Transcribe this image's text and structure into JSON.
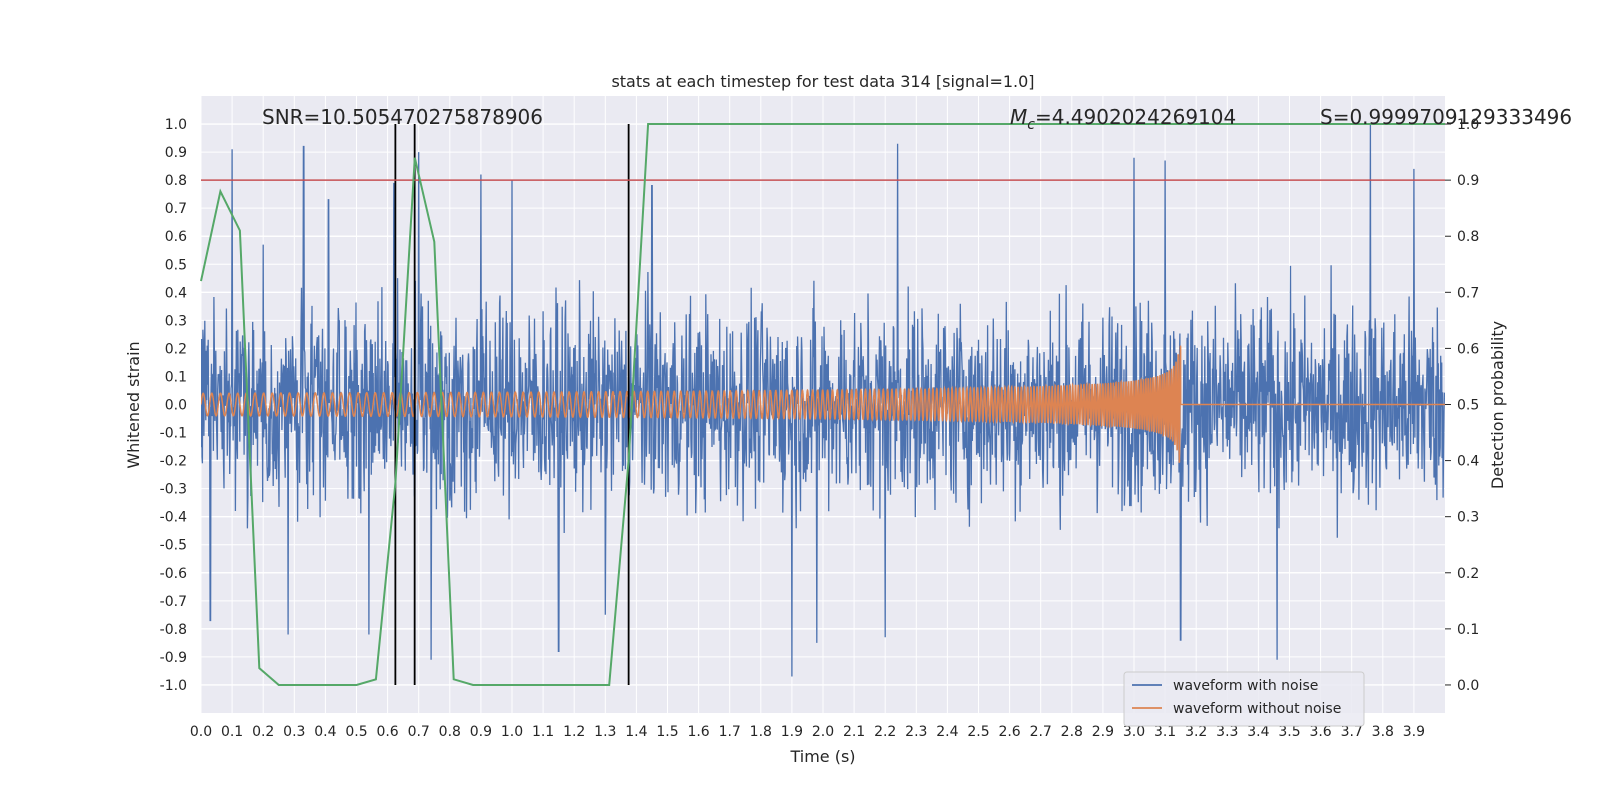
{
  "chart_data": {
    "type": "line",
    "title": "stats at each timestep for test data 314 [signal=1.0]",
    "xlabel": "Time (s)",
    "ylabel": "Whitened strain",
    "y2label": "Detection probability",
    "xlim": [
      0.0,
      4.0
    ],
    "ylim": [
      -1.1,
      1.1
    ],
    "y2lim": [
      -0.05,
      1.05
    ],
    "x_ticks": [
      "0.0",
      "0.1",
      "0.2",
      "0.3",
      "0.4",
      "0.5",
      "0.6",
      "0.7",
      "0.8",
      "0.9",
      "1.0",
      "1.1",
      "1.2",
      "1.3",
      "1.4",
      "1.5",
      "1.6",
      "1.7",
      "1.8",
      "1.9",
      "2.0",
      "2.1",
      "2.2",
      "2.3",
      "2.4",
      "2.5",
      "2.6",
      "2.7",
      "2.8",
      "2.9",
      "3.0",
      "3.1",
      "3.2",
      "3.3",
      "3.4",
      "3.5",
      "3.6",
      "3.7",
      "3.8",
      "3.9"
    ],
    "y_ticks": [
      "1.0",
      "0.9",
      "0.8",
      "0.7",
      "0.6",
      "0.5",
      "0.4",
      "0.3",
      "0.2",
      "0.1",
      "0.0",
      "-0.1",
      "-0.2",
      "-0.3",
      "-0.4",
      "-0.5",
      "-0.6",
      "-0.7",
      "-0.8",
      "-0.9",
      "-1.0"
    ],
    "y2_ticks": [
      "1.0",
      "0.9",
      "0.8",
      "0.7",
      "0.6",
      "0.5",
      "0.4",
      "0.3",
      "0.2",
      "0.1",
      "0.0"
    ],
    "grid": true,
    "legend_position": "bottom-right",
    "annotations": {
      "snr": "SNR=10.505470275878906",
      "mc_symbol": "M",
      "mc_sub": "c",
      "mc_value": "=4.4902024269104",
      "s": "S=0.9999709129333496"
    },
    "threshold_probability": 0.9,
    "vertical_markers_s": [
      0.625,
      0.687,
      1.375
    ],
    "series": [
      {
        "name": "waveform with noise",
        "color": "#4c72b0",
        "kind": "noise",
        "x_range": [
          0.0,
          4.0
        ],
        "typical_amplitude": 0.4,
        "spikes": [
          {
            "x": 0.02,
            "y": 0.21
          },
          {
            "x": 0.03,
            "y": -0.77
          },
          {
            "x": 0.1,
            "y": 0.91
          },
          {
            "x": 0.2,
            "y": 0.57
          },
          {
            "x": 0.28,
            "y": -0.82
          },
          {
            "x": 0.33,
            "y": 0.92
          },
          {
            "x": 0.41,
            "y": 0.73
          },
          {
            "x": 0.54,
            "y": -0.82
          },
          {
            "x": 0.62,
            "y": 0.79
          },
          {
            "x": 0.7,
            "y": 0.9
          },
          {
            "x": 0.74,
            "y": -0.91
          },
          {
            "x": 0.9,
            "y": 0.82
          },
          {
            "x": 1.0,
            "y": 0.8
          },
          {
            "x": 1.15,
            "y": -0.88
          },
          {
            "x": 1.3,
            "y": -0.75
          },
          {
            "x": 1.45,
            "y": 0.78
          },
          {
            "x": 1.9,
            "y": -0.97
          },
          {
            "x": 1.98,
            "y": -0.85
          },
          {
            "x": 2.2,
            "y": -0.83
          },
          {
            "x": 2.24,
            "y": 0.93
          },
          {
            "x": 3.0,
            "y": 0.88
          },
          {
            "x": 3.1,
            "y": 0.87
          },
          {
            "x": 3.15,
            "y": -0.84
          },
          {
            "x": 3.46,
            "y": -0.91
          },
          {
            "x": 3.76,
            "y": 1.0
          },
          {
            "x": 3.9,
            "y": 0.84
          }
        ]
      },
      {
        "name": "waveform without noise",
        "color": "#dd8452",
        "kind": "chirp",
        "x_range": [
          0.0,
          4.0
        ],
        "merger_time_s": 3.15,
        "start_amplitude": 0.04,
        "peak_amplitude": 0.27,
        "start_cycles_per_s": 36,
        "end_cycles_per_s": 140
      },
      {
        "name": "Detection probability",
        "color": "#55a868",
        "axis": "right",
        "x": [
          0.0,
          0.0625,
          0.125,
          0.1875,
          0.25,
          0.3125,
          0.375,
          0.4375,
          0.5,
          0.5625,
          0.625,
          0.6875,
          0.75,
          0.8125,
          0.875,
          0.9375,
          1.0,
          1.0625,
          1.125,
          1.1875,
          1.25,
          1.3125,
          1.375,
          1.4375,
          1.5,
          4.0
        ],
        "y": [
          0.72,
          0.88,
          0.81,
          0.03,
          0.0,
          0.0,
          0.0,
          0.0,
          0.0,
          0.01,
          0.36,
          0.94,
          0.79,
          0.01,
          0.0,
          0.0,
          0.0,
          0.0,
          0.0,
          0.0,
          0.0,
          0.0,
          0.4,
          1.0,
          1.0,
          1.0
        ]
      }
    ]
  }
}
